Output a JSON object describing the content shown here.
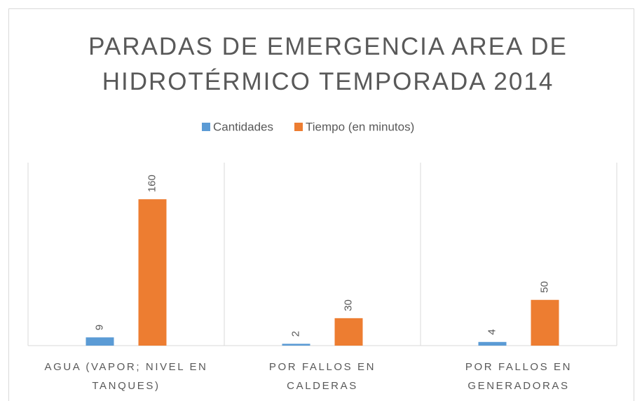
{
  "chart_data": {
    "type": "bar",
    "title": "PARADAS DE EMERGENCIA AREA DE HIDROTÉRMICO TEMPORADA 2014",
    "categories": [
      "AGUA (VAPOR; NIVEL EN TANQUES)",
      "POR FALLOS EN CALDERAS",
      "POR FALLOS EN GENERADORAS"
    ],
    "series": [
      {
        "name": "Cantidades",
        "color": "#5b9bd5",
        "values": [
          9,
          2,
          4
        ]
      },
      {
        "name": "Tiempo (en minutos)",
        "color": "#ed7d31",
        "values": [
          160,
          30,
          50
        ]
      }
    ],
    "ylim": [
      0,
      200
    ],
    "grid": true,
    "legend": "top"
  }
}
